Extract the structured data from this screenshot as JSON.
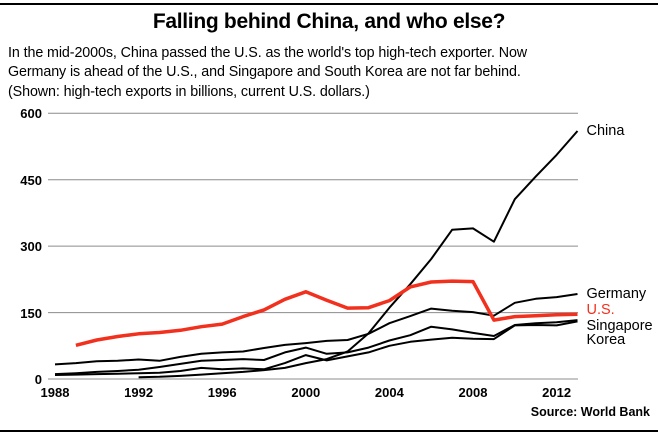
{
  "header": {
    "title": "Falling behind China, and who else?",
    "subtitle_lines": [
      "In the mid-2000s, China passed the U.S. as the world's top high-tech exporter. Now",
      "Germany is ahead of the U.S., and Singapore and South Korea are not far behind.",
      "(Shown: high-tech exports in billions, current U.S. dollars.)"
    ]
  },
  "footer": {
    "source": "Source: World Bank"
  },
  "colors": {
    "accent_red": "#f2301e",
    "line_black": "#000000",
    "grid_gray": "#8c8c8c",
    "text_black": "#000000"
  },
  "chart_data": {
    "type": "line",
    "title": "Falling behind China, and who else?",
    "subtitle": "High-tech exports in billions, current U.S. dollars",
    "x_range": [
      1988,
      2013
    ],
    "y_range": [
      0,
      600
    ],
    "x_ticks": [
      "1988",
      "1992",
      "1996",
      "2000",
      "2004",
      "2008",
      "2012"
    ],
    "y_ticks": [
      "0",
      "150",
      "300",
      "450",
      "600"
    ],
    "grid": "horizontal-only",
    "legend_position": "right-of-line-ends",
    "series": [
      {
        "name": "China",
        "color": "#000000",
        "stroke_width": 2,
        "label_dy": 0,
        "x": [
          1992,
          1993,
          1994,
          1995,
          1996,
          1997,
          1998,
          1999,
          2000,
          2001,
          2002,
          2003,
          2004,
          2005,
          2006,
          2007,
          2008,
          2009,
          2010,
          2011,
          2012,
          2013
        ],
        "values": [
          4,
          5,
          7,
          10,
          13,
          16,
          20,
          25,
          36,
          45,
          62,
          103,
          161,
          214,
          271,
          337,
          340,
          310,
          406,
          457,
          506,
          560
        ]
      },
      {
        "name": "Germany",
        "color": "#000000",
        "stroke_width": 2,
        "label_dy": 0,
        "x": [
          1988,
          1989,
          1990,
          1991,
          1992,
          1993,
          1994,
          1995,
          1996,
          1997,
          1998,
          1999,
          2000,
          2001,
          2002,
          2003,
          2004,
          2005,
          2006,
          2007,
          2008,
          2009,
          2010,
          2011,
          2012,
          2013
        ],
        "values": [
          33,
          36,
          40,
          41,
          44,
          41,
          50,
          57,
          60,
          62,
          70,
          77,
          81,
          86,
          88,
          102,
          126,
          142,
          159,
          154,
          151,
          143,
          172,
          181,
          185,
          192
        ]
      },
      {
        "name": "U.S.",
        "color": "#f2301e",
        "stroke_width": 3.5,
        "label_dy": -4,
        "x": [
          1989,
          1990,
          1991,
          1992,
          1993,
          1994,
          1995,
          1996,
          1997,
          1998,
          1999,
          2000,
          2001,
          2002,
          2003,
          2004,
          2005,
          2006,
          2007,
          2008,
          2009,
          2010,
          2011,
          2012,
          2013
        ],
        "values": [
          76,
          88,
          96,
          102,
          105,
          110,
          118,
          124,
          141,
          156,
          180,
          197,
          178,
          160,
          161,
          177,
          208,
          219,
          221,
          220,
          133,
          141,
          143,
          145,
          146
        ]
      },
      {
        "name": "Singapore",
        "color": "#000000",
        "stroke_width": 2,
        "label_dy": 6,
        "x": [
          1988,
          1989,
          1990,
          1991,
          1992,
          1993,
          1994,
          1995,
          1996,
          1997,
          1998,
          1999,
          2000,
          2001,
          2002,
          2003,
          2004,
          2005,
          2006,
          2007,
          2008,
          2009,
          2010,
          2011,
          2012,
          2013
        ],
        "values": [
          11,
          13,
          16,
          18,
          21,
          27,
          34,
          41,
          43,
          45,
          43,
          60,
          71,
          57,
          60,
          71,
          87,
          99,
          118,
          112,
          104,
          97,
          122,
          126,
          128,
          133
        ]
      },
      {
        "name": "Korea",
        "color": "#000000",
        "stroke_width": 2,
        "label_dy": 19,
        "x": [
          1988,
          1989,
          1990,
          1991,
          1992,
          1993,
          1994,
          1995,
          1996,
          1997,
          1998,
          1999,
          2000,
          2001,
          2002,
          2003,
          2004,
          2005,
          2006,
          2007,
          2008,
          2009,
          2010,
          2011,
          2012,
          2013
        ],
        "values": [
          9,
          10,
          11,
          12,
          13,
          14,
          18,
          25,
          22,
          24,
          22,
          36,
          54,
          42,
          51,
          60,
          75,
          84,
          89,
          93,
          91,
          90,
          121,
          122,
          121,
          130
        ]
      }
    ]
  }
}
